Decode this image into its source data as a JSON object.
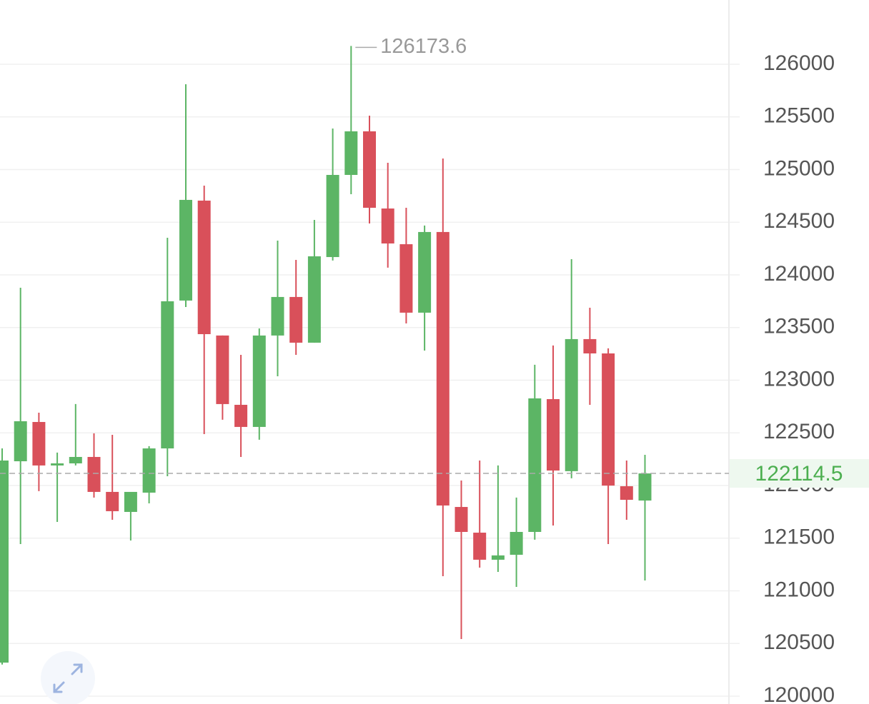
{
  "chart_data": {
    "type": "candlestick",
    "open": [
      120318,
      122230,
      122603,
      122190,
      122210,
      122271,
      121939,
      121749,
      121932,
      122352,
      123756,
      124705,
      123424,
      122766,
      122556,
      123424,
      123790,
      123356,
      124169,
      124949,
      125363,
      124630,
      124291,
      123641,
      124407,
      121796,
      121552,
      121295,
      121342,
      121559,
      122820,
      122136,
      123390,
      123254,
      121993,
      121857
    ],
    "high": [
      122352,
      123878,
      122691,
      122312,
      122773,
      122495,
      122481,
      121939,
      122373,
      124352,
      125810,
      124847,
      123424,
      123240,
      123491,
      124325,
      124142,
      124522,
      125390,
      126173.6,
      125512,
      125064,
      124637,
      124468,
      125105,
      122047,
      122237,
      122190,
      121885,
      123146,
      123329,
      124149,
      123688,
      123302,
      122237,
      122291
    ],
    "low": [
      120300,
      121444,
      121946,
      121654,
      122190,
      121885,
      121674,
      121478,
      121830,
      122088,
      123695,
      122488,
      122624,
      122271,
      122434,
      123037,
      123240,
      123356,
      124136,
      124766,
      124488,
      124068,
      123539,
      123281,
      121139,
      120542,
      121220,
      121179,
      121037,
      121485,
      121620,
      122068,
      122766,
      121444,
      121674,
      121098
    ],
    "close": [
      122237,
      122610,
      122190,
      122210,
      122271,
      121939,
      121756,
      121939,
      122352,
      123749,
      124712,
      123437,
      122773,
      122556,
      123424,
      123790,
      123356,
      124176,
      124949,
      125363,
      124637,
      124298,
      123641,
      124407,
      121810,
      121559,
      121295,
      121336,
      121559,
      122827,
      122142,
      123390,
      123254,
      121999,
      121864,
      122114.5
    ],
    "up_color": "#5cb565",
    "down_color": "#d9505a",
    "ylim": [
      119925,
      126610
    ],
    "yticks": [
      120000,
      120500,
      121000,
      121500,
      122000,
      122500,
      123000,
      123500,
      124000,
      124500,
      125000,
      125500,
      126000
    ],
    "grid": true
  }
}
